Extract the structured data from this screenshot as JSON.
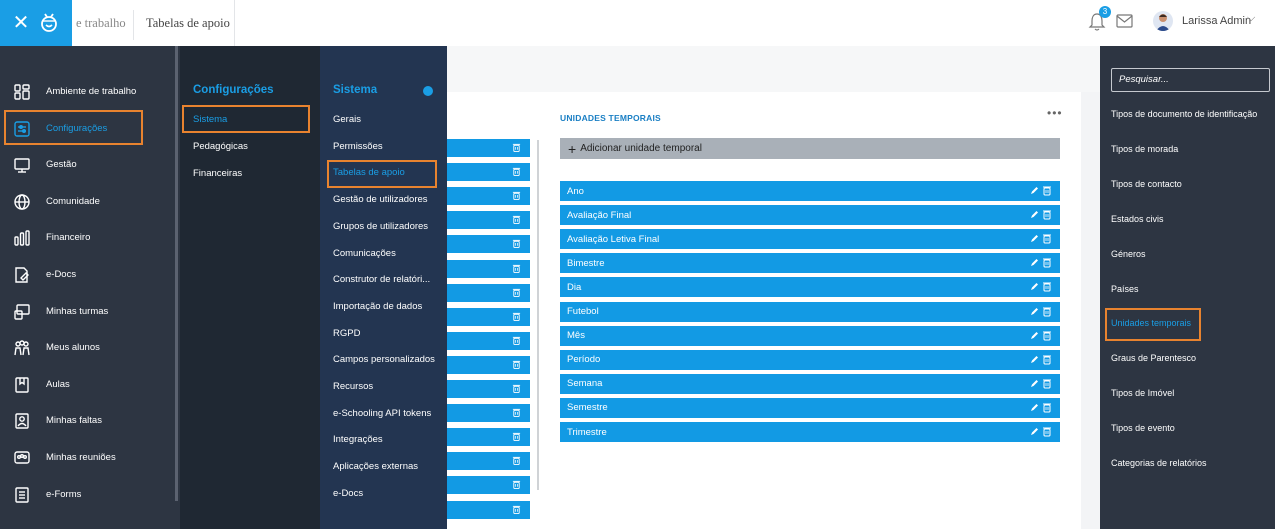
{
  "header": {
    "breadcrumb_partial": "e trabalho",
    "breadcrumb_current": "Tabelas de apoio",
    "notifications_count": "3",
    "user_name": "Larissa Admin"
  },
  "icons": {
    "close": "close-icon",
    "logo": "logo-icon",
    "bell": "bell-icon",
    "mail": "mail-icon",
    "dropdown": "chevron-down-icon",
    "edit": "pencil-icon",
    "delete": "trash-icon"
  },
  "colors": {
    "accent": "#1a9ee5",
    "highlight": "#e8832f",
    "nav_bg": "#2d3542",
    "nav3_bg": "#233551"
  },
  "nav1": {
    "items": [
      {
        "label": "Ambiente de trabalho",
        "icon": "grid-icon"
      },
      {
        "label": "Configurações",
        "icon": "settings-icon",
        "active": true
      },
      {
        "label": "Gestão",
        "icon": "monitor-icon"
      },
      {
        "label": "Comunidade",
        "icon": "globe-icon"
      },
      {
        "label": "Financeiro",
        "icon": "chart-bars-icon"
      },
      {
        "label": "e-Docs",
        "icon": "document-edit-icon"
      },
      {
        "label": "Minhas turmas",
        "icon": "class-icon"
      },
      {
        "label": "Meus alunos",
        "icon": "students-icon"
      },
      {
        "label": "Aulas",
        "icon": "book-icon"
      },
      {
        "label": "Minhas faltas",
        "icon": "absence-icon"
      },
      {
        "label": "Minhas reuniões",
        "icon": "meetings-icon"
      },
      {
        "label": "e-Forms",
        "icon": "form-icon"
      }
    ]
  },
  "nav2": {
    "title": "Configurações",
    "items": [
      "Sistema",
      "Pedagógicas",
      "Financeiras"
    ]
  },
  "nav3": {
    "title": "Sistema",
    "items": [
      "Gerais",
      "Permissões",
      "Tabelas de apoio",
      "Gestão de utilizadores",
      "Grupos de utilizadores",
      "Comunicações",
      "Construtor de relatóri...",
      "Importação de dados",
      "RGPD",
      "Campos personalizados",
      "Recursos",
      "e-Schooling API tokens",
      "Integrações",
      "Aplicações externas",
      "e-Docs"
    ]
  },
  "main": {
    "title": "UNIDADES TEMPORAIS",
    "menu": "•••",
    "add_label": "Adicionar unidade temporal",
    "rows": [
      "Ano",
      "Avaliação Final",
      "Avaliação Letiva Final",
      "Bimestre",
      "Dia",
      "Futebol",
      "Mês",
      "Período",
      "Semana",
      "Semestre",
      "Trimestre"
    ]
  },
  "right_panel": {
    "search_placeholder": "Pesquisar...",
    "items": [
      "Tipos de documento de identificação",
      "Tipos de morada",
      "Tipos de contacto",
      "Estados civis",
      "Géneros",
      "Países",
      "Unidades temporais",
      "Graus de Parentesco",
      "Tipos de Imóvel",
      "Tipos de evento",
      "Categorias de relatórios"
    ],
    "active_item": "Unidades temporais"
  }
}
